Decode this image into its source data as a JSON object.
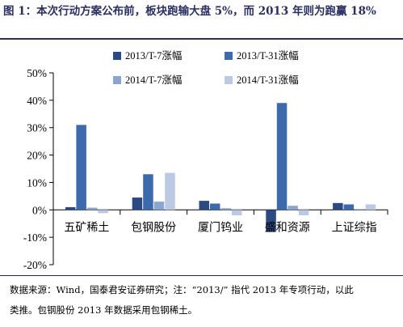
{
  "header": {
    "title": "图 1：本次行动方案公布前，板块跑输大盘 5%，而 2013 年则为跑赢 18%"
  },
  "footer": {
    "source_line1": "数据来源：Wind，国泰君安证券研究；注：“2013/” 指代 2013 年专项行动，以此",
    "source_line2": "类推。包钢股份 2013 年数据采用包钢稀土。"
  },
  "chart_data": {
    "type": "bar",
    "categories": [
      "五矿稀土",
      "包钢股份",
      "厦门钨业",
      "盛和资源",
      "上证综指"
    ],
    "series": [
      {
        "name": "2013/T-7涨幅",
        "color": "#2b4a82",
        "values": [
          1,
          4.5,
          3.3,
          -8,
          2.5
        ]
      },
      {
        "name": "2013/T-31涨幅",
        "color": "#3d69ad",
        "values": [
          31,
          13,
          2.3,
          39,
          2
        ]
      },
      {
        "name": "2014/T-7涨幅",
        "color": "#8aa5cf",
        "values": [
          0.8,
          3,
          0.6,
          1.5,
          0.3
        ]
      },
      {
        "name": "2014/T-31涨幅",
        "color": "#bcc9e3",
        "values": [
          -1.2,
          13.5,
          -2,
          -2,
          2
        ]
      }
    ],
    "y_ticks": [
      "50%",
      "40%",
      "30%",
      "20%",
      "10%",
      "0%",
      "-10%",
      "-20%"
    ],
    "ylim": [
      -20,
      50
    ],
    "y_unit": "%",
    "grid": false,
    "legend_position": "top"
  }
}
